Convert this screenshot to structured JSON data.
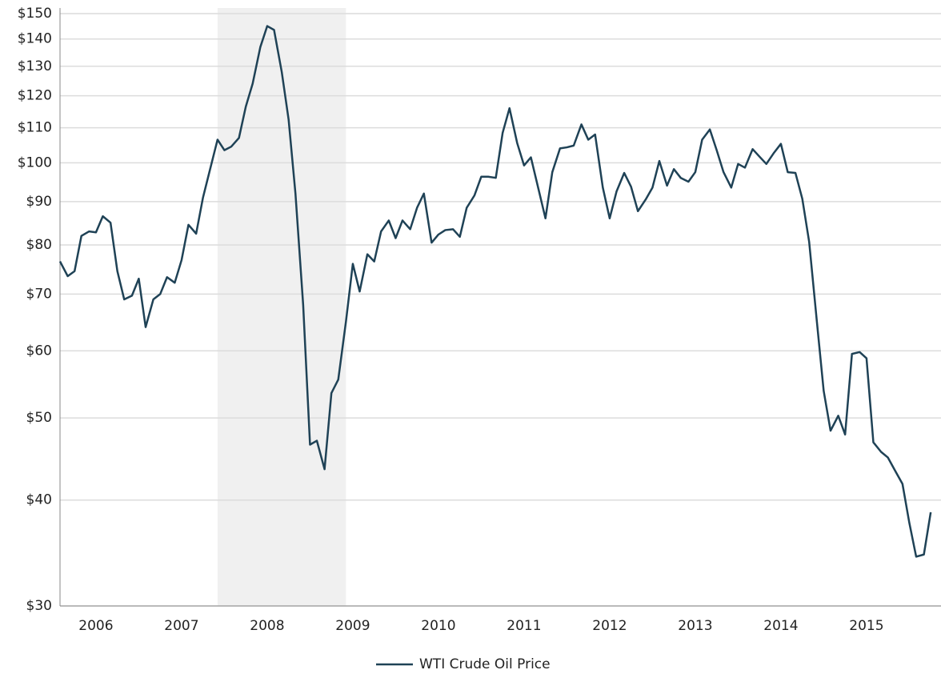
{
  "chart_data": {
    "type": "line",
    "x": [
      2006.08,
      2006.17,
      2006.25,
      2006.33,
      2006.42,
      2006.5,
      2006.58,
      2006.67,
      2006.75,
      2006.83,
      2006.92,
      2007,
      2007.08,
      2007.17,
      2007.25,
      2007.33,
      2007.42,
      2007.5,
      2007.58,
      2007.67,
      2007.75,
      2007.83,
      2007.92,
      2008,
      2008.08,
      2008.17,
      2008.25,
      2008.33,
      2008.42,
      2008.5,
      2008.58,
      2008.67,
      2008.75,
      2008.83,
      2008.92,
      2009,
      2009.08,
      2009.17,
      2009.25,
      2009.33,
      2009.42,
      2009.5,
      2009.58,
      2009.67,
      2009.75,
      2009.83,
      2009.92,
      2010,
      2010.08,
      2010.17,
      2010.25,
      2010.33,
      2010.42,
      2010.5,
      2010.58,
      2010.67,
      2010.75,
      2010.83,
      2010.92,
      2011,
      2011.08,
      2011.17,
      2011.25,
      2011.33,
      2011.42,
      2011.5,
      2011.58,
      2011.67,
      2011.75,
      2011.83,
      2011.92,
      2012,
      2012.08,
      2012.17,
      2012.25,
      2012.33,
      2012.42,
      2012.5,
      2012.58,
      2012.67,
      2012.75,
      2012.83,
      2012.92,
      2013,
      2013.08,
      2013.17,
      2013.25,
      2013.33,
      2013.42,
      2013.5,
      2013.58,
      2013.67,
      2013.75,
      2013.83,
      2013.92,
      2014,
      2014.08,
      2014.17,
      2014.25,
      2014.33,
      2014.42,
      2014.5,
      2014.58,
      2014.67,
      2014.75,
      2014.83,
      2014.92,
      2015,
      2015.08,
      2015.17,
      2015.25,
      2015.33,
      2015.42,
      2015.5,
      2015.58,
      2015.67,
      2015.75,
      2015.83,
      2015.92,
      2016,
      2016.08,
      2016.17,
      2016.25
    ],
    "series": [
      {
        "name": "WTI Crude Oil Price",
        "color": "#1f4256",
        "values": [
          76.5,
          73.5,
          74.5,
          82,
          83,
          82.8,
          86.5,
          85,
          74.5,
          69,
          69.7,
          73,
          64,
          69,
          70,
          73.3,
          72.2,
          76.8,
          84.5,
          82.5,
          91,
          98,
          106.5,
          103.5,
          104.5,
          107,
          116.5,
          124,
          137,
          145,
          143.5,
          128,
          112.5,
          92,
          68,
          46.5,
          47,
          43.5,
          53.5,
          55.5,
          65,
          76,
          70.5,
          78,
          76.5,
          83,
          85.5,
          81.5,
          85.5,
          83.5,
          88.5,
          92,
          80.5,
          82.3,
          83.3,
          83.5,
          81.8,
          88.5,
          91.5,
          96.3,
          96.3,
          96,
          108.5,
          116,
          105.5,
          99.3,
          101.5,
          93,
          86,
          97.5,
          104,
          104.3,
          104.8,
          111,
          106.5,
          108,
          93.5,
          86,
          92.5,
          97.3,
          93.7,
          87.7,
          90.5,
          93.5,
          100.5,
          94,
          98.3,
          96,
          95,
          97.5,
          106.5,
          109.5,
          103.5,
          97.5,
          93.5,
          99.7,
          98.7,
          103.8,
          101.7,
          99.7,
          102.8,
          105.3,
          97.5,
          97.3,
          90.7,
          80.7,
          65,
          53.8,
          48.3,
          50.3,
          47.8,
          59.5,
          59.8,
          58.8,
          46.8,
          45.6,
          44.9,
          43.4,
          41.8,
          37.6,
          34.3,
          34.5,
          38.7
        ]
      }
    ],
    "xlim": [
      2006.08,
      2016.37
    ],
    "xticks": [
      2006,
      2007,
      2008,
      2009,
      2010,
      2011,
      2012,
      2013,
      2014,
      2015
    ],
    "ylim": [
      30,
      150
    ],
    "ylog": true,
    "yticks": [
      {
        "value": 30,
        "label": "$30"
      },
      {
        "value": 40,
        "label": "$40"
      },
      {
        "value": 50,
        "label": "$50"
      },
      {
        "value": 60,
        "label": "$60"
      },
      {
        "value": 70,
        "label": "$70"
      },
      {
        "value": 80,
        "label": "$80"
      },
      {
        "value": 90,
        "label": "$90"
      },
      {
        "value": 100,
        "label": "$100"
      },
      {
        "value": 110,
        "label": "$110"
      },
      {
        "value": 120,
        "label": "$120"
      },
      {
        "value": 130,
        "label": "$130"
      },
      {
        "value": 140,
        "label": "$140"
      },
      {
        "value": 150,
        "label": "$150"
      }
    ],
    "shaded_region": [
      2007.92,
      2009.42
    ],
    "shade_color": "#f0f0f0",
    "grid": true,
    "legend": "bottom"
  }
}
